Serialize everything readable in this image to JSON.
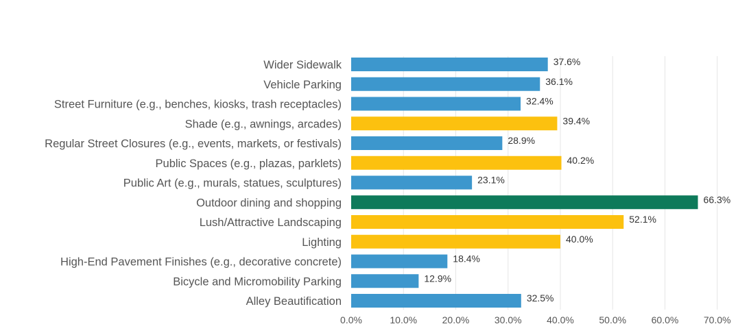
{
  "chart_data": {
    "type": "bar",
    "orientation": "horizontal",
    "title": "",
    "xlabel": "",
    "ylabel": "",
    "xlim": [
      0,
      70
    ],
    "grid": true,
    "ticks": [
      {
        "value": 0,
        "label": "0.0%"
      },
      {
        "value": 10,
        "label": "10.0%"
      },
      {
        "value": 20,
        "label": "20.0%"
      },
      {
        "value": 30,
        "label": "30.0%"
      },
      {
        "value": 40,
        "label": "40.0%"
      },
      {
        "value": 50,
        "label": "50.0%"
      },
      {
        "value": 60,
        "label": "60.0%"
      },
      {
        "value": 70,
        "label": "70.0%"
      }
    ],
    "colors": {
      "blue": "#3d97cd",
      "yellow": "#fcc10f",
      "green": "#0e7a5a"
    },
    "bars": [
      {
        "category": "Wider Sidewalk",
        "value": 37.6,
        "label": "37.6%",
        "color": "blue"
      },
      {
        "category": "Vehicle Parking",
        "value": 36.1,
        "label": "36.1%",
        "color": "blue"
      },
      {
        "category": "Street Furniture (e.g., benches, kiosks, trash receptacles)",
        "value": 32.4,
        "label": "32.4%",
        "color": "blue"
      },
      {
        "category": "Shade (e.g., awnings, arcades)",
        "value": 39.4,
        "label": "39.4%",
        "color": "yellow"
      },
      {
        "category": "Regular Street Closures (e.g., events, markets, or festivals)",
        "value": 28.9,
        "label": "28.9%",
        "color": "blue"
      },
      {
        "category": "Public Spaces (e.g., plazas, parklets)",
        "value": 40.2,
        "label": "40.2%",
        "color": "yellow"
      },
      {
        "category": "Public Art (e.g., murals, statues, sculptures)",
        "value": 23.1,
        "label": "23.1%",
        "color": "blue"
      },
      {
        "category": "Outdoor dining and shopping",
        "value": 66.3,
        "label": "66.3%",
        "color": "green"
      },
      {
        "category": "Lush/Attractive Landscaping",
        "value": 52.1,
        "label": "52.1%",
        "color": "yellow"
      },
      {
        "category": "Lighting",
        "value": 40.0,
        "label": "40.0%",
        "color": "yellow"
      },
      {
        "category": "High-End Pavement Finishes (e.g., decorative concrete)",
        "value": 18.4,
        "label": "18.4%",
        "color": "blue"
      },
      {
        "category": "Bicycle and Micromobility Parking",
        "value": 12.9,
        "label": "12.9%",
        "color": "blue"
      },
      {
        "category": "Alley Beautification",
        "value": 32.5,
        "label": "32.5%",
        "color": "blue"
      }
    ]
  }
}
